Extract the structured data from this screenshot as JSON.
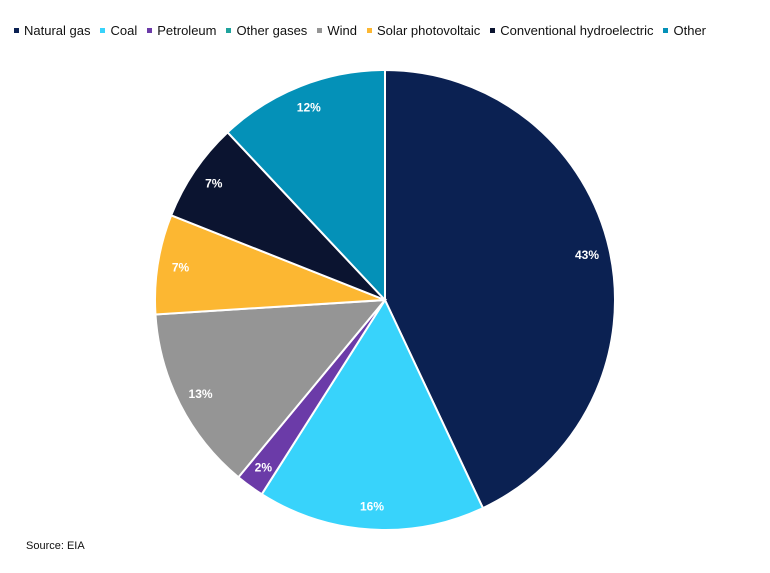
{
  "chart_data": {
    "type": "pie",
    "slices": [
      {
        "name": "Natural gas",
        "value": 43,
        "label": "43%",
        "color": "#0b2152"
      },
      {
        "name": "Coal",
        "value": 16,
        "label": "16%",
        "color": "#38d3fb"
      },
      {
        "name": "Petroleum",
        "value": 2,
        "label": "2%",
        "color": "#6b3ba8"
      },
      {
        "name": "Other gases",
        "value": 0,
        "label": "",
        "color": "#1fa39d"
      },
      {
        "name": "Wind",
        "value": 13,
        "label": "13%",
        "color": "#959595"
      },
      {
        "name": "Solar photovoltaic",
        "value": 7,
        "label": "7%",
        "color": "#fcb732"
      },
      {
        "name": "Conventional hydroelectric",
        "value": 7,
        "label": "7%",
        "color": "#0b1430"
      },
      {
        "name": "Other",
        "value": 12,
        "label": "12%",
        "color": "#0491b8"
      }
    ],
    "legend_position": "top",
    "source": "Source: EIA"
  }
}
